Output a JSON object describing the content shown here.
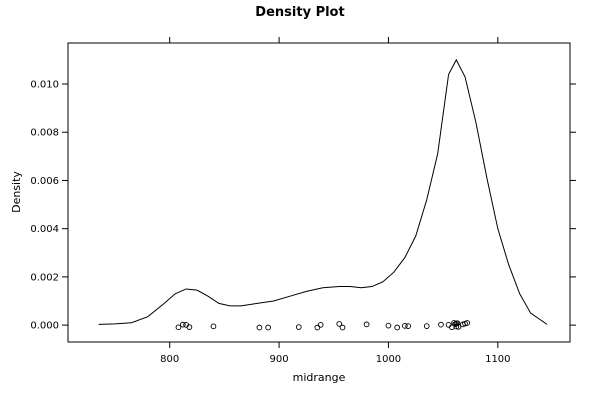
{
  "chart_data": {
    "type": "line",
    "title": "Density Plot",
    "xlabel": "midrange",
    "ylabel": "Density",
    "xlim": [
      707,
      1166
    ],
    "ylim": [
      -0.0007,
      0.0117
    ],
    "xticks": [
      800,
      900,
      1000,
      1100
    ],
    "yticks": [
      0.0,
      0.002,
      0.004,
      0.006,
      0.008,
      0.01
    ],
    "xtick_labels": [
      "800",
      "900",
      "1000",
      "1100"
    ],
    "ytick_labels": [
      "0.000",
      "0.002",
      "0.004",
      "0.006",
      "0.008",
      "0.010"
    ],
    "grid": false,
    "series": [
      {
        "kind": "density_curve",
        "x": [
          735,
          750,
          765,
          780,
          795,
          805,
          815,
          825,
          835,
          845,
          855,
          865,
          880,
          895,
          910,
          925,
          940,
          955,
          965,
          975,
          985,
          995,
          1005,
          1015,
          1025,
          1035,
          1045,
          1055,
          1062,
          1070,
          1080,
          1090,
          1100,
          1110,
          1120,
          1130,
          1145
        ],
        "y": [
          3e-05,
          5e-05,
          0.0001,
          0.00035,
          0.0009,
          0.0013,
          0.0015,
          0.00145,
          0.0012,
          0.0009,
          0.0008,
          0.0008,
          0.0009,
          0.001,
          0.0012,
          0.0014,
          0.00155,
          0.0016,
          0.0016,
          0.00155,
          0.0016,
          0.0018,
          0.0022,
          0.0028,
          0.0037,
          0.0052,
          0.0071,
          0.0104,
          0.011,
          0.0103,
          0.0084,
          0.0061,
          0.004,
          0.0025,
          0.0013,
          0.0005,
          3e-05
        ]
      },
      {
        "kind": "rug_points",
        "x": [
          808,
          812,
          815,
          818,
          840,
          882,
          890,
          918,
          935,
          938,
          955,
          958,
          980,
          1000,
          1008,
          1015,
          1018,
          1035,
          1048,
          1055,
          1058,
          1060,
          1061,
          1062,
          1062,
          1063,
          1064,
          1068,
          1070,
          1072
        ],
        "y": [
          -9e-05,
          2e-05,
          1e-05,
          -8e-05,
          -5e-05,
          -0.0001,
          -0.0001,
          -8e-05,
          -0.0001,
          1e-05,
          5e-05,
          -0.0001,
          3e-05,
          -2e-05,
          -0.0001,
          -3e-05,
          -4e-05,
          -4e-05,
          2e-05,
          1e-05,
          -9e-05,
          9e-05,
          4e-05,
          6e-05,
          -6e-05,
          8e-05,
          -7e-05,
          3e-05,
          6e-05,
          9e-05
        ]
      }
    ]
  }
}
